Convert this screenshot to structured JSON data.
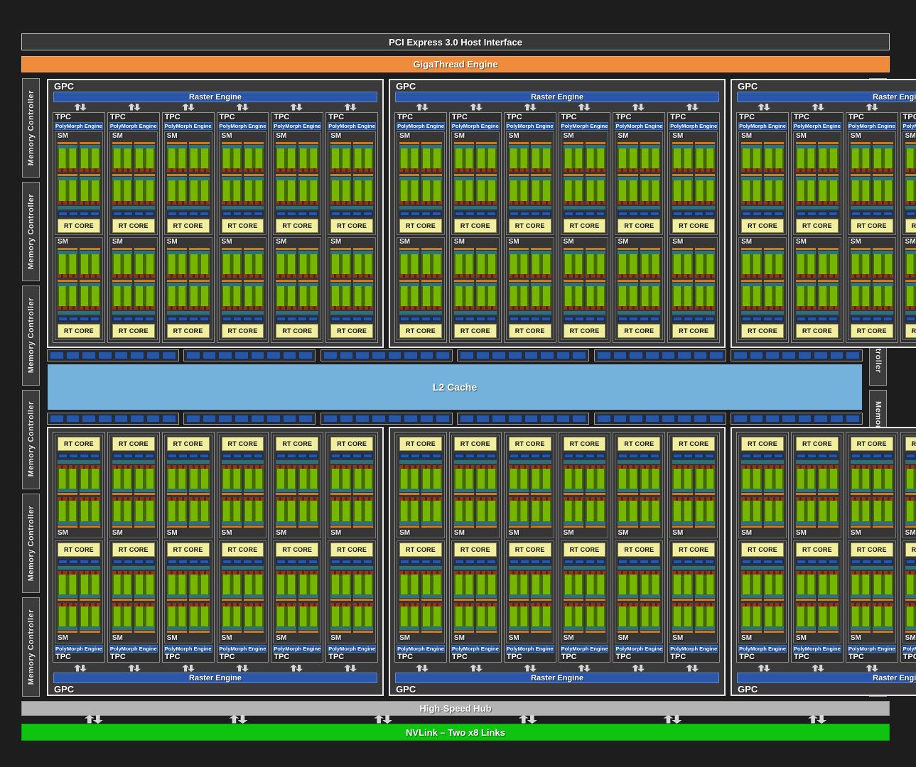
{
  "labels": {
    "pci": "PCI Express 3.0 Host Interface",
    "gigathread": "GigaThread Engine",
    "gpc": "GPC",
    "raster": "Raster Engine",
    "tpc": "TPC",
    "polymorph": "PolyMorph Engine",
    "sm": "SM",
    "rt_core": "RT CORE",
    "l2": "L2 Cache",
    "memory_controller": "Memory Controller",
    "hub": "High-Speed Hub",
    "nvlink": "NVLink – Two x8 Links"
  },
  "structure": {
    "gpc_rows": 2,
    "gpcs_per_row": 3,
    "tpcs_per_gpc": 6,
    "sms_per_tpc": 2,
    "core_rows_per_sm": 2,
    "core_cols_per_row": 2,
    "memory_controllers_per_side": 6,
    "l2_strips_per_gpc": 2,
    "segments_per_strip": 8,
    "blue_segments_per_sm": 4,
    "hub_arrow_pairs": 6
  },
  "colors": {
    "pci_bg": "#383838",
    "gigathread_orange": "#ee8b3c",
    "raster_blue": "#2b57ab",
    "polymorph_blue": "#1e4e96",
    "l2_blue": "#74b2dc",
    "nvlink_green": "#0fc40f",
    "hub_gray": "#b3b3b3",
    "rt_yellow": "#f1eea0",
    "core_green": "#76b500",
    "core_green_dark": "#436b00",
    "teal": "#30707c",
    "orange_bar": "#cd7a1e",
    "segment_blue": "#2857a8"
  }
}
